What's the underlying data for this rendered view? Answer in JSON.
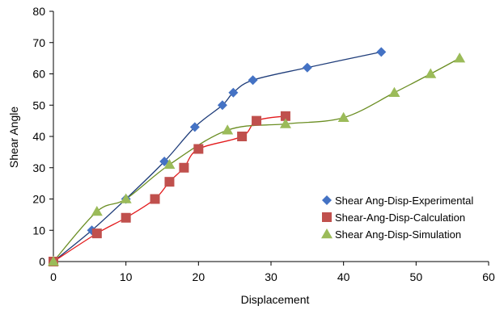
{
  "chart_data": {
    "type": "scatter",
    "title": "",
    "xlabel": "Displacement",
    "ylabel": "Shear Angle",
    "xlim": [
      0,
      60
    ],
    "ylim": [
      0,
      80
    ],
    "xticks": [
      "0",
      "10",
      "20",
      "30",
      "40",
      "50",
      "60"
    ],
    "yticks": [
      "0",
      "10",
      "20",
      "30",
      "40",
      "50",
      "60",
      "70",
      "80"
    ],
    "grid": false,
    "legend_position": "right",
    "series": [
      {
        "name": "Shear Ang-Disp-Experimental",
        "marker": "diamond",
        "color": "#4472C4",
        "line_color": "#1F3D7A",
        "x": [
          0,
          5.3,
          10,
          15.3,
          19.5,
          23.3,
          24.8,
          27.5,
          35,
          45.2
        ],
        "y": [
          0,
          10,
          20,
          32,
          43,
          50,
          54,
          58,
          62,
          67
        ]
      },
      {
        "name": "Shear-Ang-Disp-Calculation",
        "marker": "square",
        "color": "#C0504D",
        "line_color": "#E31A1C",
        "x": [
          0,
          6,
          10,
          14,
          16,
          18,
          20,
          26,
          28,
          32
        ],
        "y": [
          0,
          9,
          14,
          20,
          25.5,
          30,
          36,
          40,
          45,
          46.5
        ]
      },
      {
        "name": "Shear Ang-Disp-Simulation",
        "marker": "triangle",
        "color": "#9BBB59",
        "line_color": "#6B8E23",
        "x": [
          0,
          6,
          10,
          16,
          24,
          32,
          40,
          47,
          52,
          56
        ],
        "y": [
          0,
          16,
          20,
          31,
          42,
          44,
          46,
          54,
          60,
          65
        ]
      }
    ]
  }
}
